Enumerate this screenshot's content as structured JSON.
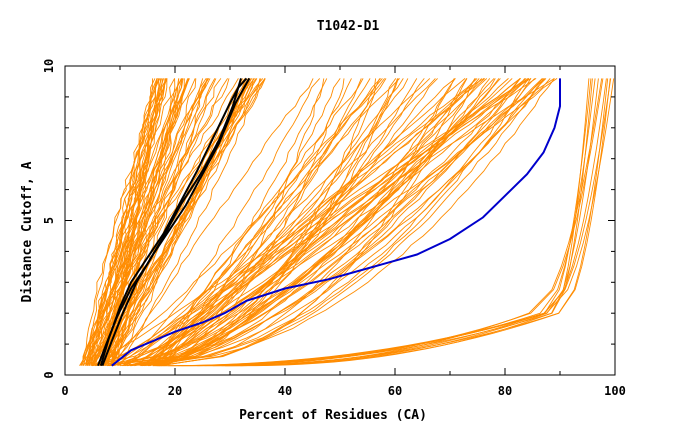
{
  "chart_data": {
    "type": "line",
    "title": "T1042-D1",
    "xlabel": "Percent of Residues (CA)",
    "ylabel": "Distance Cutoff, A",
    "xlim": [
      0,
      100
    ],
    "ylim": [
      0,
      10
    ],
    "x_ticks": [
      0,
      20,
      40,
      60,
      80,
      100
    ],
    "y_ticks": [
      0,
      5,
      10
    ],
    "x_tick_labels": [
      "0",
      "20",
      "40",
      "60",
      "80",
      "100"
    ],
    "y_tick_labels": [
      "0",
      "5",
      "10"
    ],
    "grid": false,
    "legend": "none",
    "colors": {
      "models": "#ff8c00",
      "highlight_black": "#000000",
      "highlight_blue": "#0000cc"
    },
    "series": [
      {
        "color": "#0000cc",
        "x": [
          8.5,
          12,
          16,
          20,
          25,
          29,
          33,
          40,
          48,
          56,
          64,
          70,
          76,
          80,
          84,
          87,
          89,
          90,
          90
        ],
        "y": [
          0.3,
          0.8,
          1.1,
          1.4,
          1.7,
          2.0,
          2.4,
          2.8,
          3.1,
          3.5,
          3.9,
          4.4,
          5.1,
          5.8,
          6.5,
          7.2,
          8.0,
          8.7,
          9.6
        ]
      },
      {
        "color": "#000000",
        "x": [
          6.5,
          8,
          10,
          12,
          15,
          18,
          21,
          24,
          27,
          30,
          31.5,
          33
        ],
        "y": [
          0.3,
          1.2,
          2.2,
          3.0,
          3.8,
          4.6,
          5.6,
          6.6,
          7.7,
          8.8,
          9.3,
          9.6
        ]
      },
      {
        "color": "#000000",
        "x": [
          6.0,
          7.5,
          9.5,
          12,
          15,
          18,
          21,
          25,
          28,
          30.5,
          32
        ],
        "y": [
          0.3,
          1.0,
          1.9,
          2.8,
          3.6,
          4.5,
          5.5,
          6.6,
          7.6,
          8.7,
          9.6
        ]
      },
      {
        "color": "#000000",
        "x": [
          6.8,
          8.5,
          10.5,
          13,
          16,
          19,
          22,
          25,
          28,
          31,
          33.5
        ],
        "y": [
          0.3,
          1.1,
          2.0,
          3.0,
          3.9,
          4.7,
          5.5,
          6.5,
          7.5,
          8.8,
          9.6
        ]
      }
    ]
  }
}
